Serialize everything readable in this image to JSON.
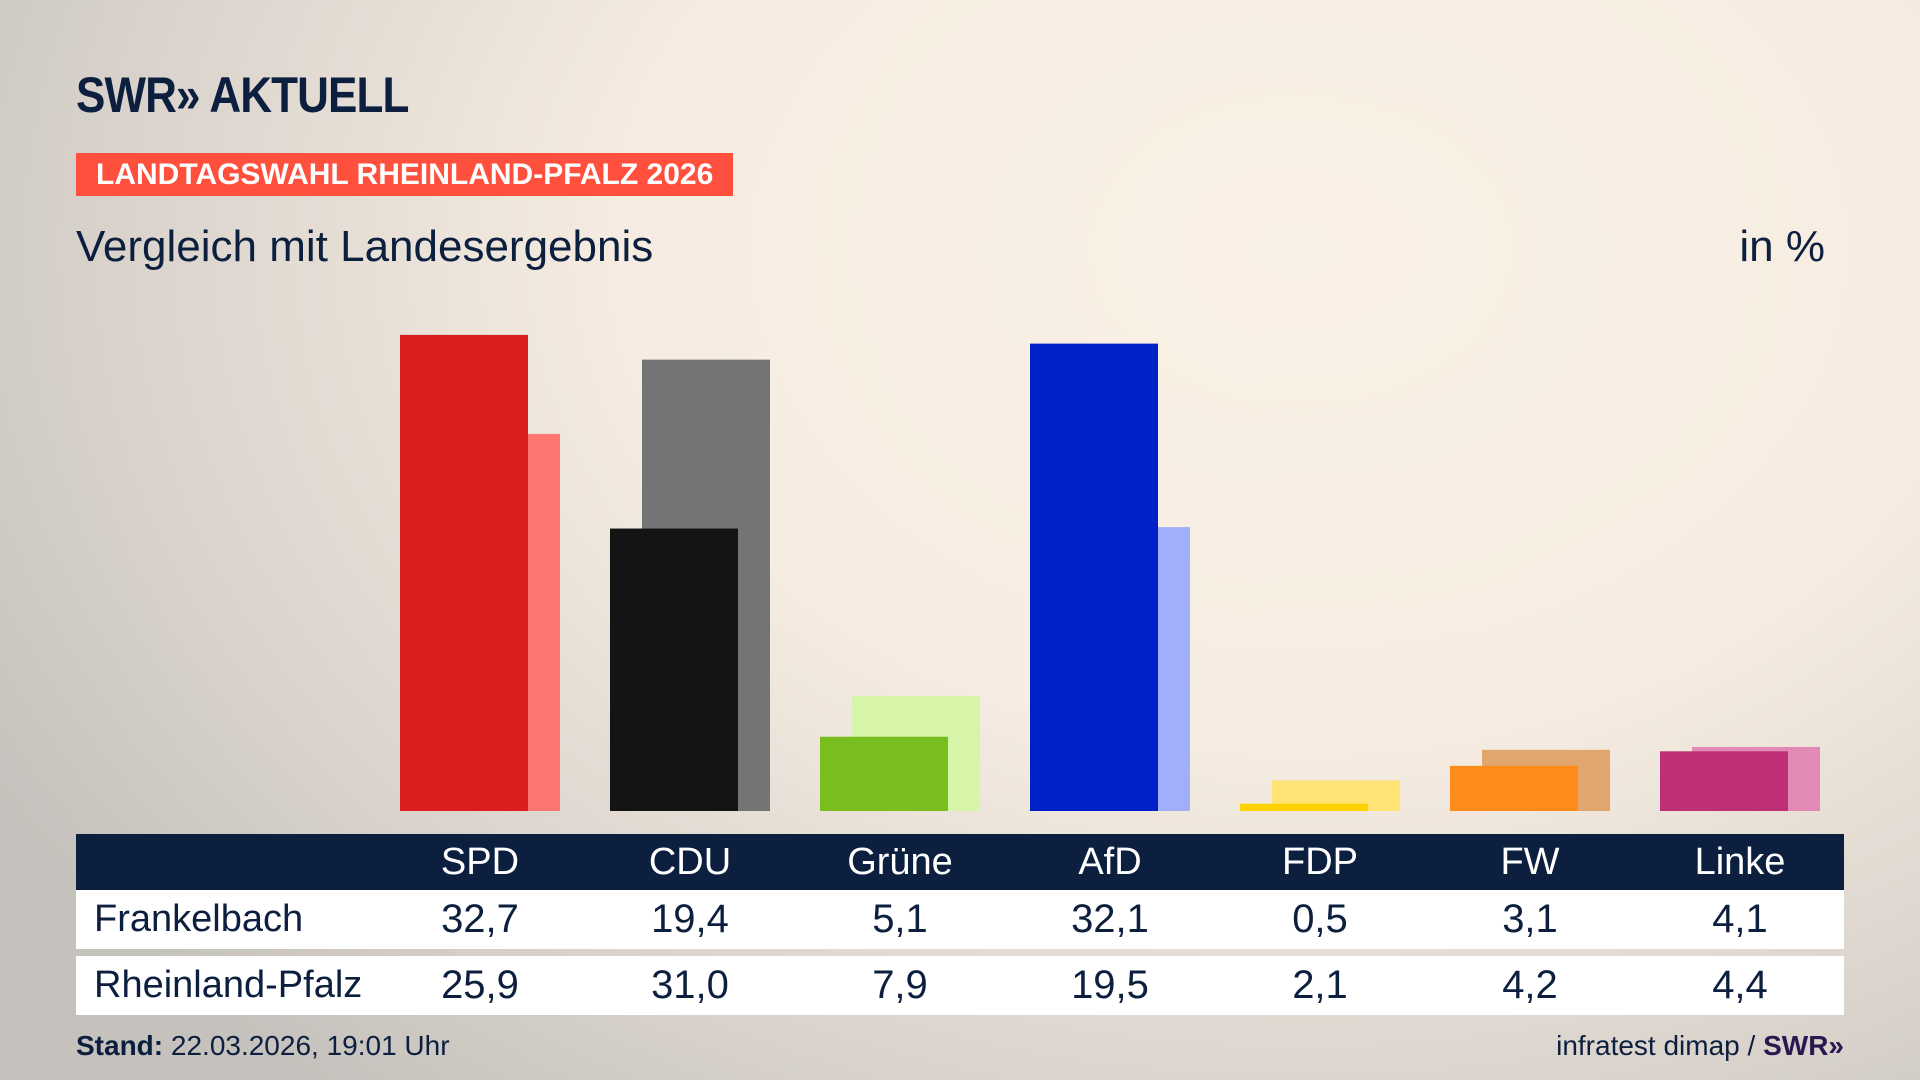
{
  "header": {
    "logo": "SWR» AKTUELL",
    "banner": "LANDTAGSWAHL RHEINLAND-PFALZ 2026",
    "subtitle": "Vergleich mit Landesergebnis",
    "unit": "in %"
  },
  "chart_data": {
    "type": "bar",
    "categories": [
      "SPD",
      "CDU",
      "Grüne",
      "AfD",
      "FDP",
      "FW",
      "Linke"
    ],
    "series": [
      {
        "name": "Frankelbach",
        "values": [
          32.7,
          19.4,
          5.1,
          32.1,
          0.5,
          3.1,
          4.1
        ],
        "display": [
          "32,7",
          "19,4",
          "5,1",
          "32,1",
          "0,5",
          "3,1",
          "4,1"
        ]
      },
      {
        "name": "Rheinland-Pfalz",
        "values": [
          25.9,
          31.0,
          7.9,
          19.5,
          2.1,
          4.2,
          4.4
        ],
        "display": [
          "25,9",
          "31,0",
          "7,9",
          "19,5",
          "2,1",
          "4,2",
          "4,4"
        ]
      }
    ],
    "colors_front": [
      "#d91f1f",
      "#141414",
      "#78be1e",
      "#0020c8",
      "#ffd200",
      "#ff8c1a",
      "#be3075"
    ],
    "colors_back": [
      "#ff7570",
      "#747474",
      "#d6f5a8",
      "#a0aefc",
      "#ffe475",
      "#e0a66e",
      "#e08ab5"
    ],
    "ylim": [
      0,
      34
    ],
    "grid": false
  },
  "footer": {
    "stand_label": "Stand:",
    "stand_value": " 22.03.2026, 19:01 Uhr",
    "source": "infratest dimap / ",
    "source_logo": "SWR»"
  }
}
